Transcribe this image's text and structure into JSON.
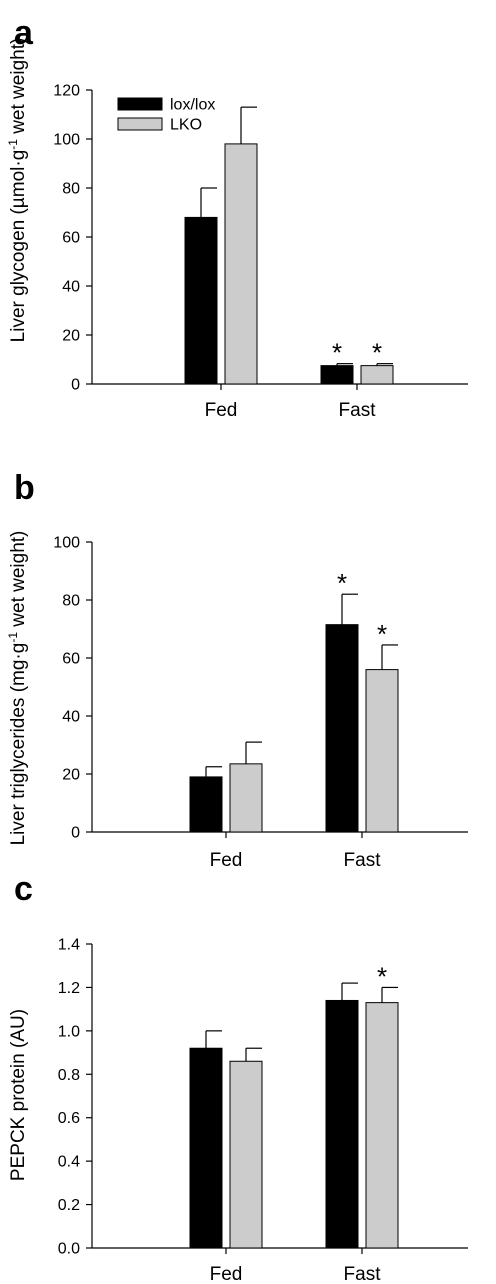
{
  "colors": {
    "lox_lox": "#000000",
    "LKO": "#cccccc",
    "axis": "#000000"
  },
  "chart_data": [
    {
      "panel": "a",
      "type": "bar",
      "ylabel_main": "Liver glycogen (µmol·g",
      "ylabel_sup": "-1",
      "ylabel_tail": " wet weight)",
      "ylim": [
        0,
        120
      ],
      "yticks": [
        "0",
        "20",
        "40",
        "60",
        "80",
        "100",
        "120"
      ],
      "categories": [
        "Fed",
        "Fast"
      ],
      "legend": {
        "placement": "top-left",
        "entries": [
          "lox/lox",
          "LKO"
        ]
      },
      "series": [
        {
          "name": "lox/lox",
          "values": [
            68,
            7.5
          ],
          "errors": [
            12,
            0.8
          ],
          "significant": [
            false,
            true
          ]
        },
        {
          "name": "LKO",
          "values": [
            98,
            7.5
          ],
          "errors": [
            15,
            0.8
          ],
          "significant": [
            false,
            true
          ]
        }
      ],
      "significance_marker": "*"
    },
    {
      "panel": "b",
      "type": "bar",
      "ylabel_main": "Liver triglycerides (mg·g",
      "ylabel_sup": "-1",
      "ylabel_tail": " wet weight)",
      "ylim": [
        0,
        100
      ],
      "yticks": [
        "0",
        "20",
        "40",
        "60",
        "80",
        "100"
      ],
      "categories": [
        "Fed",
        "Fast"
      ],
      "series": [
        {
          "name": "lox/lox",
          "values": [
            19,
            71.5
          ],
          "errors": [
            3.5,
            10.5
          ],
          "significant": [
            false,
            true
          ]
        },
        {
          "name": "LKO",
          "values": [
            23.5,
            56
          ],
          "errors": [
            7.5,
            8.5
          ],
          "significant": [
            false,
            true
          ]
        }
      ],
      "significance_marker": "*"
    },
    {
      "panel": "c",
      "type": "bar",
      "ylabel_main": "PEPCK protein (AU)",
      "ylabel_sup": "",
      "ylabel_tail": "",
      "ylim": [
        0,
        1.4
      ],
      "yticks": [
        "0.0",
        "0.2",
        "0.4",
        "0.6",
        "0.8",
        "1.0",
        "1.2",
        "1.4"
      ],
      "categories": [
        "Fed",
        "Fast"
      ],
      "series": [
        {
          "name": "lox/lox",
          "values": [
            0.92,
            1.14
          ],
          "errors": [
            0.08,
            0.08
          ],
          "significant": [
            false,
            false
          ]
        },
        {
          "name": "LKO",
          "values": [
            0.86,
            1.13
          ],
          "errors": [
            0.06,
            0.07
          ],
          "significant": [
            false,
            true
          ]
        }
      ],
      "significance_marker": "*"
    }
  ]
}
